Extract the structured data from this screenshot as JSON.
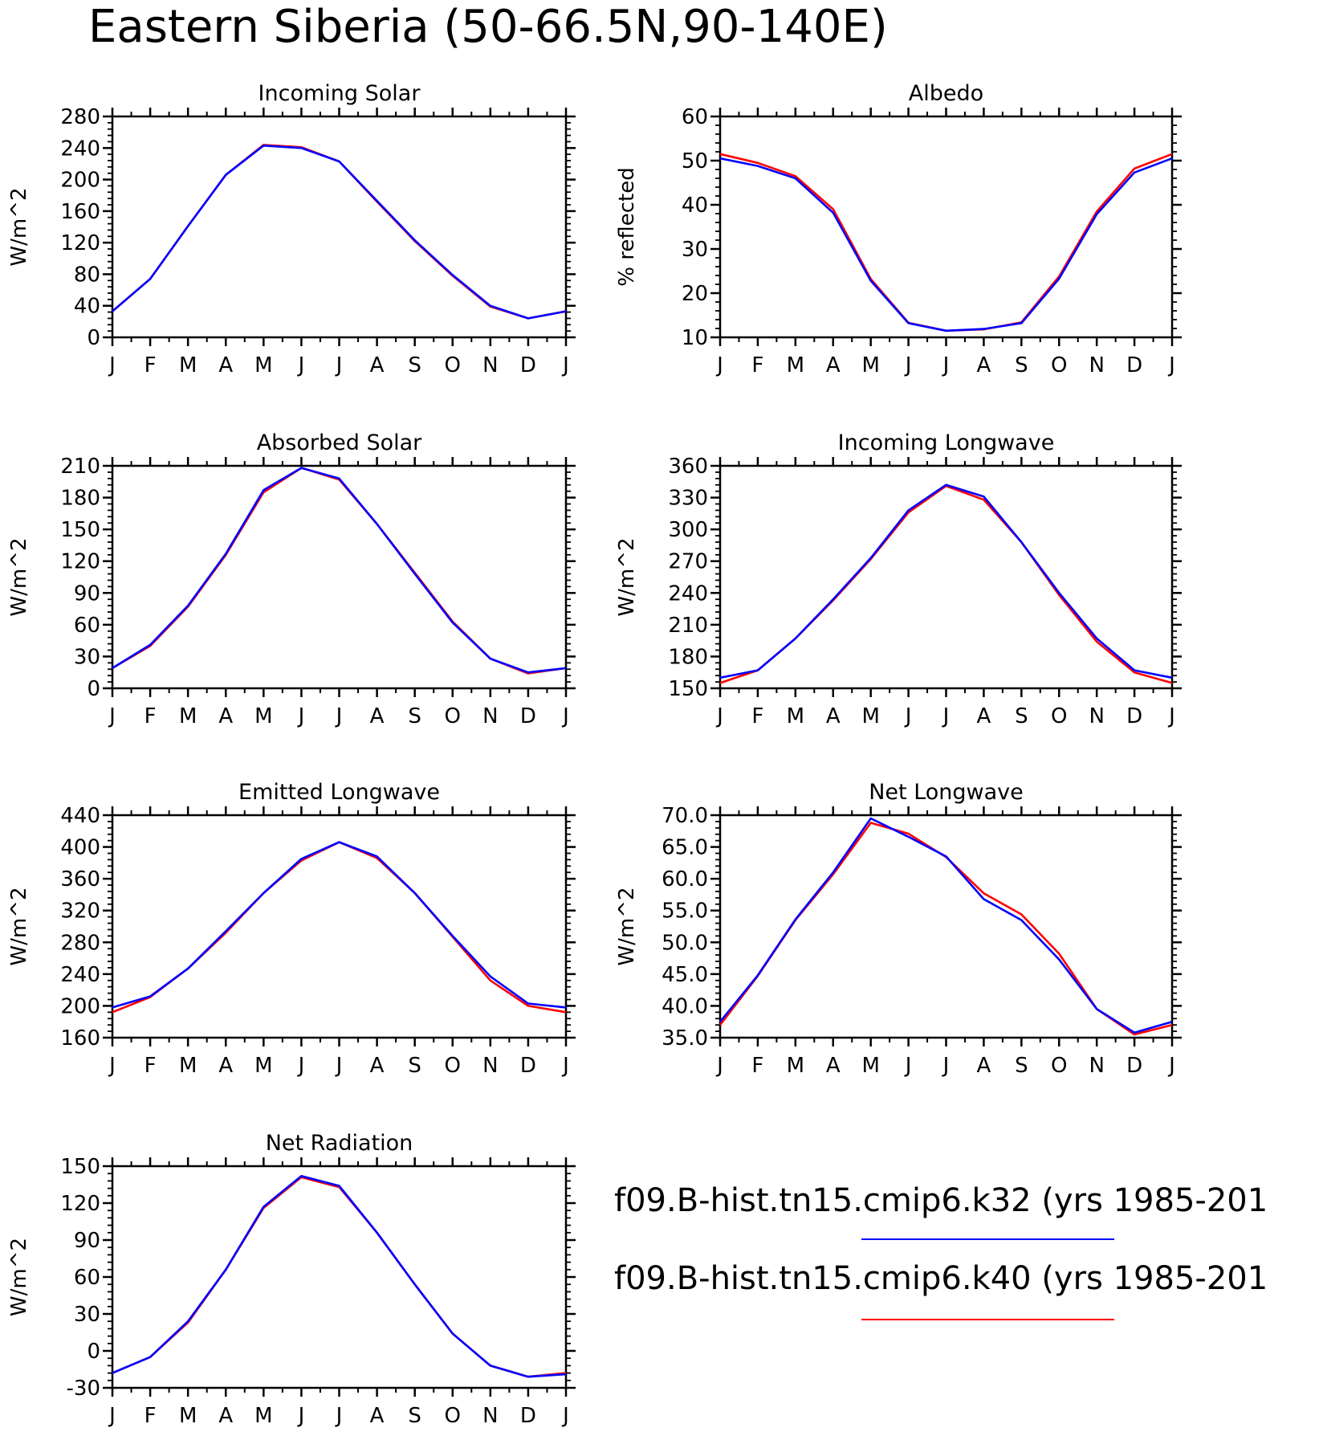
{
  "title": "Eastern Siberia (50-66.5N,90-140E)",
  "month_labels": [
    "J",
    "F",
    "M",
    "A",
    "M",
    "J",
    "J",
    "A",
    "S",
    "O",
    "N",
    "D",
    "J"
  ],
  "legend": [
    {
      "label": "f09.B-hist.tn15.cmip6.k32 (yrs 1985-201",
      "color": "#0000ff"
    },
    {
      "label": "f09.B-hist.tn15.cmip6.k40 (yrs 1985-201",
      "color": "#ff0000"
    }
  ],
  "chart_data": [
    {
      "type": "line",
      "title": "Incoming Solar",
      "ylabel": "W/m^2",
      "ylim": [
        0,
        280
      ],
      "yticks": [
        "0",
        "40",
        "80",
        "120",
        "160",
        "200",
        "240",
        "280"
      ],
      "ytick_values": [
        0,
        40,
        80,
        120,
        160,
        200,
        240,
        280
      ],
      "categories": [
        "J",
        "F",
        "M",
        "A",
        "M",
        "J",
        "J",
        "A",
        "S",
        "O",
        "N",
        "D",
        "J"
      ],
      "series": [
        {
          "name": "f09.B-hist.tn15.cmip6.k40 (yrs 1985-201",
          "color": "#ff0000",
          "values": [
            33,
            74,
            141,
            206,
            244,
            241,
            223,
            172,
            122,
            78,
            39,
            24,
            33
          ]
        },
        {
          "name": "f09.B-hist.tn15.cmip6.k32 (yrs 1985-201",
          "color": "#0000ff",
          "values": [
            33,
            74,
            141,
            206,
            243,
            240,
            223,
            173,
            123,
            79,
            40,
            24,
            33
          ]
        }
      ]
    },
    {
      "type": "line",
      "title": "Albedo",
      "ylabel": "% reflected",
      "ylim": [
        10,
        60
      ],
      "yticks": [
        "10",
        "20",
        "30",
        "40",
        "50",
        "60"
      ],
      "ytick_values": [
        10,
        20,
        30,
        40,
        50,
        60
      ],
      "categories": [
        "J",
        "F",
        "M",
        "A",
        "M",
        "J",
        "J",
        "A",
        "S",
        "O",
        "N",
        "D",
        "J"
      ],
      "series": [
        {
          "name": "f09.B-hist.tn15.cmip6.k40 (yrs 1985-201",
          "color": "#ff0000",
          "values": [
            51.5,
            49.5,
            46.5,
            39,
            23.2,
            13.3,
            11.5,
            11.8,
            13.4,
            23.8,
            38.5,
            48.2,
            51.5
          ]
        },
        {
          "name": "f09.B-hist.tn15.cmip6.k32 (yrs 1985-201",
          "color": "#0000ff",
          "values": [
            50.5,
            48.8,
            46,
            38.2,
            22.8,
            13.2,
            11.5,
            11.9,
            13.2,
            23.3,
            37.9,
            47.3,
            50.5
          ]
        }
      ]
    },
    {
      "type": "line",
      "title": "Absorbed Solar",
      "ylabel": "W/m^2",
      "ylim": [
        0,
        210
      ],
      "yticks": [
        "0",
        "30",
        "60",
        "90",
        "120",
        "150",
        "180",
        "210"
      ],
      "ytick_values": [
        0,
        30,
        60,
        90,
        120,
        150,
        180,
        210
      ],
      "categories": [
        "J",
        "F",
        "M",
        "A",
        "M",
        "J",
        "J",
        "A",
        "S",
        "O",
        "N",
        "D",
        "J"
      ],
      "series": [
        {
          "name": "f09.B-hist.tn15.cmip6.k40 (yrs 1985-201",
          "color": "#ff0000",
          "values": [
            19,
            40,
            77,
            126,
            185,
            208,
            197,
            155,
            109,
            63,
            28,
            14,
            19
          ]
        },
        {
          "name": "f09.B-hist.tn15.cmip6.k32 (yrs 1985-201",
          "color": "#0000ff",
          "values": [
            19,
            41,
            78,
            127,
            187,
            208,
            198,
            155,
            108,
            62,
            28,
            15,
            19
          ]
        }
      ]
    },
    {
      "type": "line",
      "title": "Incoming Longwave",
      "ylabel": "W/m^2",
      "ylim": [
        150,
        360
      ],
      "yticks": [
        "150",
        "180",
        "210",
        "240",
        "270",
        "300",
        "330",
        "360"
      ],
      "ytick_values": [
        150,
        180,
        210,
        240,
        270,
        300,
        330,
        360
      ],
      "categories": [
        "J",
        "F",
        "M",
        "A",
        "M",
        "J",
        "J",
        "A",
        "S",
        "O",
        "N",
        "D",
        "J"
      ],
      "series": [
        {
          "name": "f09.B-hist.tn15.cmip6.k40 (yrs 1985-201",
          "color": "#ff0000",
          "values": [
            155,
            167,
            197,
            233,
            272,
            316,
            341,
            328,
            288,
            238,
            194,
            165,
            155
          ]
        },
        {
          "name": "f09.B-hist.tn15.cmip6.k32 (yrs 1985-201",
          "color": "#0000ff",
          "values": [
            160,
            167,
            197,
            234,
            273,
            318,
            342,
            331,
            288,
            240,
            197,
            167,
            160
          ]
        }
      ]
    },
    {
      "type": "line",
      "title": "Emitted Longwave",
      "ylabel": "W/m^2",
      "ylim": [
        160,
        440
      ],
      "yticks": [
        "160",
        "200",
        "240",
        "280",
        "320",
        "360",
        "400",
        "440"
      ],
      "ytick_values": [
        160,
        200,
        240,
        280,
        320,
        360,
        400,
        440
      ],
      "categories": [
        "J",
        "F",
        "M",
        "A",
        "M",
        "J",
        "J",
        "A",
        "S",
        "O",
        "N",
        "D",
        "J"
      ],
      "series": [
        {
          "name": "f09.B-hist.tn15.cmip6.k40 (yrs 1985-201",
          "color": "#ff0000",
          "values": [
            192,
            211,
            247,
            292,
            342,
            383,
            406,
            386,
            342,
            287,
            232,
            200,
            192
          ]
        },
        {
          "name": "f09.B-hist.tn15.cmip6.k32 (yrs 1985-201",
          "color": "#0000ff",
          "values": [
            198,
            212,
            247,
            294,
            342,
            385,
            406,
            388,
            342,
            288,
            237,
            203,
            198
          ]
        }
      ]
    },
    {
      "type": "line",
      "title": "Net Longwave",
      "ylabel": "W/m^2",
      "ylim": [
        35,
        70
      ],
      "yticks": [
        "35.0",
        "40.0",
        "45.0",
        "50.0",
        "55.0",
        "60.0",
        "65.0",
        "70.0"
      ],
      "ytick_values": [
        35,
        40,
        45,
        50,
        55,
        60,
        65,
        70
      ],
      "categories": [
        "J",
        "F",
        "M",
        "A",
        "M",
        "J",
        "J",
        "A",
        "S",
        "O",
        "N",
        "D",
        "J"
      ],
      "series": [
        {
          "name": "f09.B-hist.tn15.cmip6.k40 (yrs 1985-201",
          "color": "#ff0000",
          "values": [
            37.0,
            44.7,
            53.5,
            60.7,
            68.8,
            67.1,
            63.4,
            57.7,
            54.4,
            48.2,
            39.5,
            35.5,
            37.0
          ]
        },
        {
          "name": "f09.B-hist.tn15.cmip6.k32 (yrs 1985-201",
          "color": "#0000ff",
          "values": [
            37.5,
            44.8,
            53.6,
            61.0,
            69.5,
            66.6,
            63.5,
            56.8,
            53.5,
            47.3,
            39.5,
            35.8,
            37.5
          ]
        }
      ]
    },
    {
      "type": "line",
      "title": "Net Radiation",
      "ylabel": "W/m^2",
      "ylim": [
        -30,
        150
      ],
      "yticks": [
        "-30",
        "0",
        "30",
        "60",
        "90",
        "120",
        "150"
      ],
      "ytick_values": [
        -30,
        0,
        30,
        60,
        90,
        120,
        150
      ],
      "categories": [
        "J",
        "F",
        "M",
        "A",
        "M",
        "J",
        "J",
        "A",
        "S",
        "O",
        "N",
        "D",
        "J"
      ],
      "series": [
        {
          "name": "f09.B-hist.tn15.cmip6.k40 (yrs 1985-201",
          "color": "#ff0000",
          "values": [
            -18,
            -5,
            23,
            66,
            116,
            141,
            133,
            96,
            54,
            14,
            -12,
            -21,
            -18
          ]
        },
        {
          "name": "f09.B-hist.tn15.cmip6.k32 (yrs 1985-201",
          "color": "#0000ff",
          "values": [
            -18,
            -5,
            24,
            66,
            117,
            142,
            134,
            96,
            54,
            14,
            -12,
            -21,
            -19
          ]
        }
      ]
    }
  ]
}
